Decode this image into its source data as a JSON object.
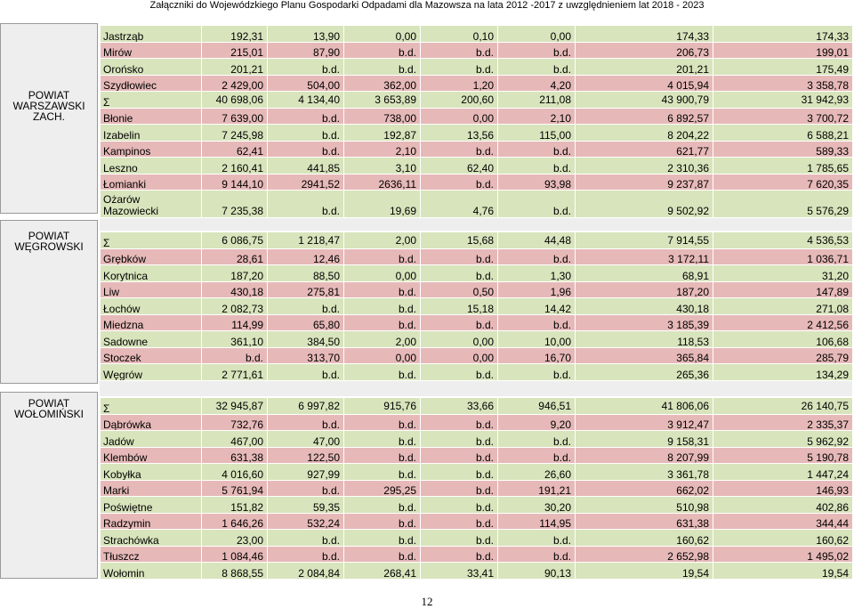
{
  "header": "Załączniki do Wojewódzkiego Planu Gospodarki Odpadami dla Mazowsza na lata 2012 -2017 z uwzględnieniem lat 2018 - 2023",
  "page_number": "12",
  "counties": [
    {
      "label": "POWIAT WARSZAWSKI ZACH."
    },
    {
      "label": "POWIAT WĘGROWSKI"
    },
    {
      "label": "POWIAT WOŁOMIŃSKI"
    }
  ],
  "tables": [
    {
      "rows": [
        {
          "cells": [
            "Jastrząb",
            "192,31",
            "13,90",
            "0,00",
            "0,10",
            "0,00",
            "174,33",
            "174,33"
          ]
        },
        {
          "cells": [
            "Mirów",
            "215,01",
            "87,90",
            "b.d.",
            "b.d.",
            "b.d.",
            "206,73",
            "199,01"
          ]
        },
        {
          "cells": [
            "Orońsko",
            "201,21",
            "b.d.",
            "b.d.",
            "b.d.",
            "b.d.",
            "201,21",
            "175,49"
          ]
        },
        {
          "cells": [
            "Szydłowiec",
            "2 429,00",
            "504,00",
            "362,00",
            "1,20",
            "4,20",
            "4 015,94",
            "3 358,78"
          ]
        },
        {
          "cells": [
            "Σ",
            "40 698,06",
            "4 134,40",
            "3 653,89",
            "200,60",
            "211,08",
            "43 900,79",
            "31 942,93"
          ]
        },
        {
          "cells": [
            "Błonie",
            "7 639,00",
            "b.d.",
            "738,00",
            "0,00",
            "2,10",
            "6 892,57",
            "3 700,72"
          ]
        },
        {
          "cells": [
            "Izabelin",
            "7 245,98",
            "b.d.",
            "192,87",
            "13,56",
            "115,00",
            "8 204,22",
            "6 588,21"
          ]
        },
        {
          "cells": [
            "Kampinos",
            "62,41",
            "b.d.",
            "2,10",
            "b.d.",
            "b.d.",
            "621,77",
            "589,33"
          ]
        },
        {
          "cells": [
            "Leszno",
            "2 160,41",
            "441,85",
            "3,10",
            "62,40",
            "b.d.",
            "2 310,36",
            "1 785,65"
          ]
        },
        {
          "cells": [
            "Łomianki",
            "9 144,10",
            "2941,52",
            "2636,11",
            "b.d.",
            "93,98",
            "9 237,87",
            "7 620,35"
          ]
        },
        {
          "cells": [
            "Ożarów Mazowiecki",
            "7 235,38",
            "b.d.",
            "19,69",
            "4,76",
            "b.d.",
            "9 502,92",
            "5 576,29"
          ]
        }
      ]
    },
    {
      "rows": [
        {
          "cells": [
            "Σ",
            "6 086,75",
            "1 218,47",
            "2,00",
            "15,68",
            "44,48",
            "7 914,55",
            "4 536,53"
          ]
        },
        {
          "cells": [
            "Grębków",
            "28,61",
            "12,46",
            "b.d.",
            "b.d.",
            "b.d.",
            "3 172,11",
            "1 036,71"
          ]
        },
        {
          "cells": [
            "Korytnica",
            "187,20",
            "88,50",
            "0,00",
            "b.d.",
            "1,30",
            "68,91",
            "31,20"
          ]
        },
        {
          "cells": [
            "Liw",
            "430,18",
            "275,81",
            "b.d.",
            "0,50",
            "1,96",
            "187,20",
            "147,89"
          ]
        },
        {
          "cells": [
            "Łochów",
            "2 082,73",
            "b.d.",
            "b.d.",
            "15,18",
            "14,42",
            "430,18",
            "271,08"
          ]
        },
        {
          "cells": [
            "Miedzna",
            "114,99",
            "65,80",
            "b.d.",
            "b.d.",
            "b.d.",
            "3 185,39",
            "2 412,56"
          ]
        },
        {
          "cells": [
            "Sadowne",
            "361,10",
            "384,50",
            "2,00",
            "0,00",
            "10,00",
            "118,53",
            "106,68"
          ]
        },
        {
          "cells": [
            "Stoczek",
            "b.d.",
            "313,70",
            "0,00",
            "0,00",
            "16,70",
            "365,84",
            "285,79"
          ]
        },
        {
          "cells": [
            "Węgrów",
            "2 771,61",
            "b.d.",
            "b.d.",
            "b.d.",
            "b.d.",
            "265,36",
            "134,29"
          ]
        }
      ]
    },
    {
      "rows": [
        {
          "cells": [
            "Σ",
            "32 945,87",
            "6 997,82",
            "915,76",
            "33,66",
            "946,51",
            "41 806,06",
            "26 140,75"
          ]
        },
        {
          "cells": [
            "Dąbrówka",
            "732,76",
            "b.d.",
            "b.d.",
            "b.d.",
            "9,20",
            "3 912,47",
            "2 335,37"
          ]
        },
        {
          "cells": [
            "Jadów",
            "467,00",
            "47,00",
            "b.d.",
            "b.d.",
            "b.d.",
            "9 158,31",
            "5 962,92"
          ]
        },
        {
          "cells": [
            "Klembów",
            "631,38",
            "122,50",
            "b.d.",
            "b.d.",
            "b.d.",
            "8 207,99",
            "5 190,78"
          ]
        },
        {
          "cells": [
            "Kobyłka",
            "4 016,60",
            "927,99",
            "b.d.",
            "b.d.",
            "26,60",
            "3 361,78",
            "1 447,24"
          ]
        },
        {
          "cells": [
            "Marki",
            "5 761,94",
            "b.d.",
            "295,25",
            "b.d.",
            "191,21",
            "662,02",
            "146,93"
          ]
        },
        {
          "cells": [
            "Poświętne",
            "151,82",
            "59,35",
            "b.d.",
            "b.d.",
            "30,20",
            "510,98",
            "402,86"
          ]
        },
        {
          "cells": [
            "Radzymin",
            "1 646,26",
            "532,24",
            "b.d.",
            "b.d.",
            "114,95",
            "631,38",
            "344,44"
          ]
        },
        {
          "cells": [
            "Strachówka",
            "23,00",
            "b.d.",
            "b.d.",
            "b.d.",
            "b.d.",
            "160,62",
            "160,62"
          ]
        },
        {
          "cells": [
            "Tłuszcz",
            "1 084,46",
            "b.d.",
            "b.d.",
            "b.d.",
            "b.d.",
            "2 652,98",
            "1 495,02"
          ]
        },
        {
          "cells": [
            "Wołomin",
            "8 868,55",
            "2 084,84",
            "268,41",
            "33,41",
            "90,13",
            "19,54",
            "19,54"
          ]
        }
      ]
    }
  ]
}
